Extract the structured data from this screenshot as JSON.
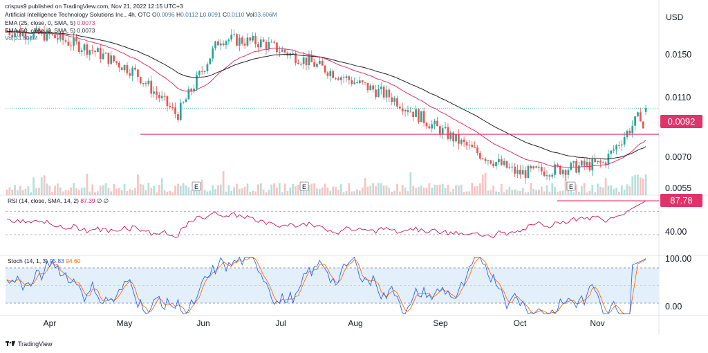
{
  "header": {
    "publisher": "crispus9 published on TradingView.com, Nov 21, 2022 12:15 UTC+3",
    "instrument": "Artificial Intelligence Technology Solutions Inc., 4h, OTC",
    "ohlc": {
      "o_label": "O",
      "o": "0.0096",
      "h_label": "H",
      "h": "0.0112",
      "l_label": "L",
      "l": "0.0091",
      "c_label": "C",
      "c": "0.0110",
      "vol_label": "Vol",
      "vol": "33.606M"
    },
    "ema25_label": "EMA (25, close, 0, SMA, 5)",
    "ema25_value": "0.0073",
    "ema50_label": "EMA (50, close, 0, SMA, 5)",
    "ema50_value": "0.0073",
    "vol_text": "Vol  33.606M"
  },
  "currency": "USD",
  "colors": {
    "up": "#26a69a",
    "down": "#ef5350",
    "ema25": "#e0336a",
    "ema50": "#222222",
    "rsi": "#c2185b",
    "stoch_k": "#2962ff",
    "stoch_d": "#ff6d00",
    "hline": "#e0336a",
    "band": "#e3f0fb"
  },
  "price_axis": {
    "ticks": [
      "0.0150",
      "0.0110",
      "0.0070",
      "0.0055"
    ],
    "current": "0.0110",
    "level": "0.0092"
  },
  "rsi": {
    "label": "RSI (14, close, SMA, 14, 2)",
    "value": "87.39",
    "na1": "∅",
    "na2": "∅",
    "tick": "40.00",
    "current": "87.78"
  },
  "stoch": {
    "label": "Stoch (14, 1, 3)",
    "k": "95.83",
    "d": "94.60",
    "ticks": [
      "100.00",
      "0.00"
    ]
  },
  "x_axis": {
    "months": [
      "Apr",
      "May",
      "Jun",
      "Jul",
      "Aug",
      "Sep",
      "Oct",
      "Nov"
    ]
  },
  "events": [
    "E",
    "E",
    "E"
  ],
  "branding": {
    "name": "TradingView"
  },
  "chart_data": {
    "type": "candlestick",
    "title": "Artificial Intelligence Technology Solutions Inc., 4h, OTC",
    "ylabel": "USD",
    "ylim": [
      0.005,
      0.0175
    ],
    "x_months": [
      "Apr",
      "May",
      "Jun",
      "Jul",
      "Aug",
      "Sep",
      "Oct",
      "Nov"
    ],
    "approx_close_path": [
      {
        "x": "Mar",
        "y": 0.0163
      },
      {
        "x": "Apr",
        "y": 0.016
      },
      {
        "x": "late Apr",
        "y": 0.015
      },
      {
        "x": "early May",
        "y": 0.0135
      },
      {
        "x": "mid May",
        "y": 0.0105
      },
      {
        "x": "late May",
        "y": 0.0158
      },
      {
        "x": "Jun",
        "y": 0.0155
      },
      {
        "x": "Jul",
        "y": 0.0143
      },
      {
        "x": "Aug",
        "y": 0.013
      },
      {
        "x": "Sep",
        "y": 0.0118
      },
      {
        "x": "Oct",
        "y": 0.0098
      },
      {
        "x": "mid Oct",
        "y": 0.008
      },
      {
        "x": "late Oct",
        "y": 0.0065
      },
      {
        "x": "Nov",
        "y": 0.0068
      },
      {
        "x": "mid Nov",
        "y": 0.0072
      },
      {
        "x": "Nov 21",
        "y": 0.011
      }
    ],
    "horizontal_level": 0.0092,
    "indicators": {
      "ema25_last": 0.0073,
      "ema50_last": 0.0073,
      "rsi_last": 87.78,
      "rsi_bands": [
        30,
        70
      ],
      "stoch_k_last": 95.83,
      "stoch_d_last": 94.6,
      "stoch_bands": [
        20,
        80
      ]
    }
  }
}
